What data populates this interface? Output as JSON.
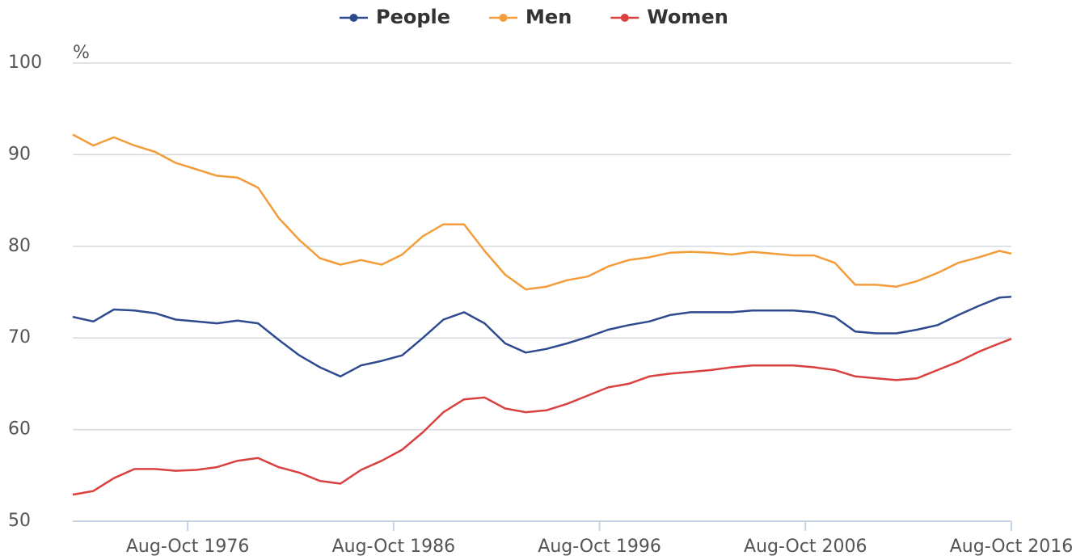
{
  "chart_data": {
    "type": "line",
    "y_label": "%",
    "x": [
      1971.17,
      1972.17,
      1973.17,
      1974.17,
      1975.17,
      1976.17,
      1977.17,
      1978.17,
      1979.17,
      1980.17,
      1981.17,
      1982.17,
      1983.17,
      1984.17,
      1985.17,
      1986.17,
      1987.17,
      1988.17,
      1989.17,
      1990.17,
      1991.17,
      1992.17,
      1993.17,
      1994.17,
      1995.17,
      1996.17,
      1997.17,
      1998.17,
      1999.17,
      2000.17,
      2001.17,
      2002.17,
      2003.17,
      2004.17,
      2005.17,
      2006.17,
      2007.17,
      2008.17,
      2009.17,
      2010.17,
      2011.17,
      2012.17,
      2013.17,
      2014.17,
      2015.17,
      2016.17,
      2016.75
    ],
    "series": [
      {
        "name": "People",
        "color": "#2e4a8f",
        "values": [
          72.3,
          71.8,
          73.1,
          73.0,
          72.7,
          72.0,
          71.8,
          71.6,
          71.9,
          71.6,
          69.8,
          68.1,
          66.8,
          65.8,
          67.0,
          67.5,
          68.1,
          70.0,
          72.0,
          72.8,
          71.6,
          69.4,
          68.4,
          68.8,
          69.4,
          70.1,
          70.9,
          71.4,
          71.8,
          72.5,
          72.8,
          72.8,
          72.8,
          73.0,
          73.0,
          73.0,
          72.8,
          72.3,
          70.7,
          70.5,
          70.5,
          70.9,
          71.4,
          72.5,
          73.5,
          74.4,
          74.5
        ]
      },
      {
        "name": "Men",
        "color": "#f39c3a",
        "values": [
          92.2,
          91.0,
          91.9,
          91.0,
          90.3,
          89.1,
          88.4,
          87.7,
          87.5,
          86.4,
          83.1,
          80.7,
          78.7,
          78.0,
          78.5,
          78.0,
          79.1,
          81.1,
          82.4,
          82.4,
          79.5,
          76.9,
          75.3,
          75.6,
          76.3,
          76.7,
          77.8,
          78.5,
          78.8,
          79.3,
          79.4,
          79.3,
          79.1,
          79.4,
          79.2,
          79.0,
          79.0,
          78.2,
          75.8,
          75.8,
          75.6,
          76.2,
          77.1,
          78.2,
          78.8,
          79.5,
          79.2
        ]
      },
      {
        "name": "Women",
        "color": "#d9413f",
        "values": [
          52.9,
          53.3,
          54.7,
          55.7,
          55.7,
          55.5,
          55.6,
          55.9,
          56.6,
          56.9,
          55.9,
          55.3,
          54.4,
          54.1,
          55.6,
          56.6,
          57.8,
          59.7,
          61.9,
          63.3,
          63.5,
          62.3,
          61.9,
          62.1,
          62.8,
          63.7,
          64.6,
          65.0,
          65.8,
          66.1,
          66.3,
          66.5,
          66.8,
          67.0,
          67.0,
          67.0,
          66.8,
          66.5,
          65.8,
          65.6,
          65.4,
          65.6,
          66.5,
          67.4,
          68.5,
          69.4,
          69.9
        ]
      }
    ],
    "xlim": [
      1971.17,
      2016.75
    ],
    "xticks": [
      {
        "value": 1976.75,
        "label": "Aug-Oct 1976"
      },
      {
        "value": 1986.75,
        "label": "Aug-Oct 1986"
      },
      {
        "value": 1996.75,
        "label": "Aug-Oct 1996"
      },
      {
        "value": 2006.75,
        "label": "Aug-Oct 2006"
      },
      {
        "value": 2016.75,
        "label": "Aug-Oct 2016"
      }
    ],
    "ylim": [
      50,
      100
    ],
    "yticks": [
      50,
      60,
      70,
      80,
      90,
      100
    ],
    "grid": true,
    "legend": "top"
  }
}
